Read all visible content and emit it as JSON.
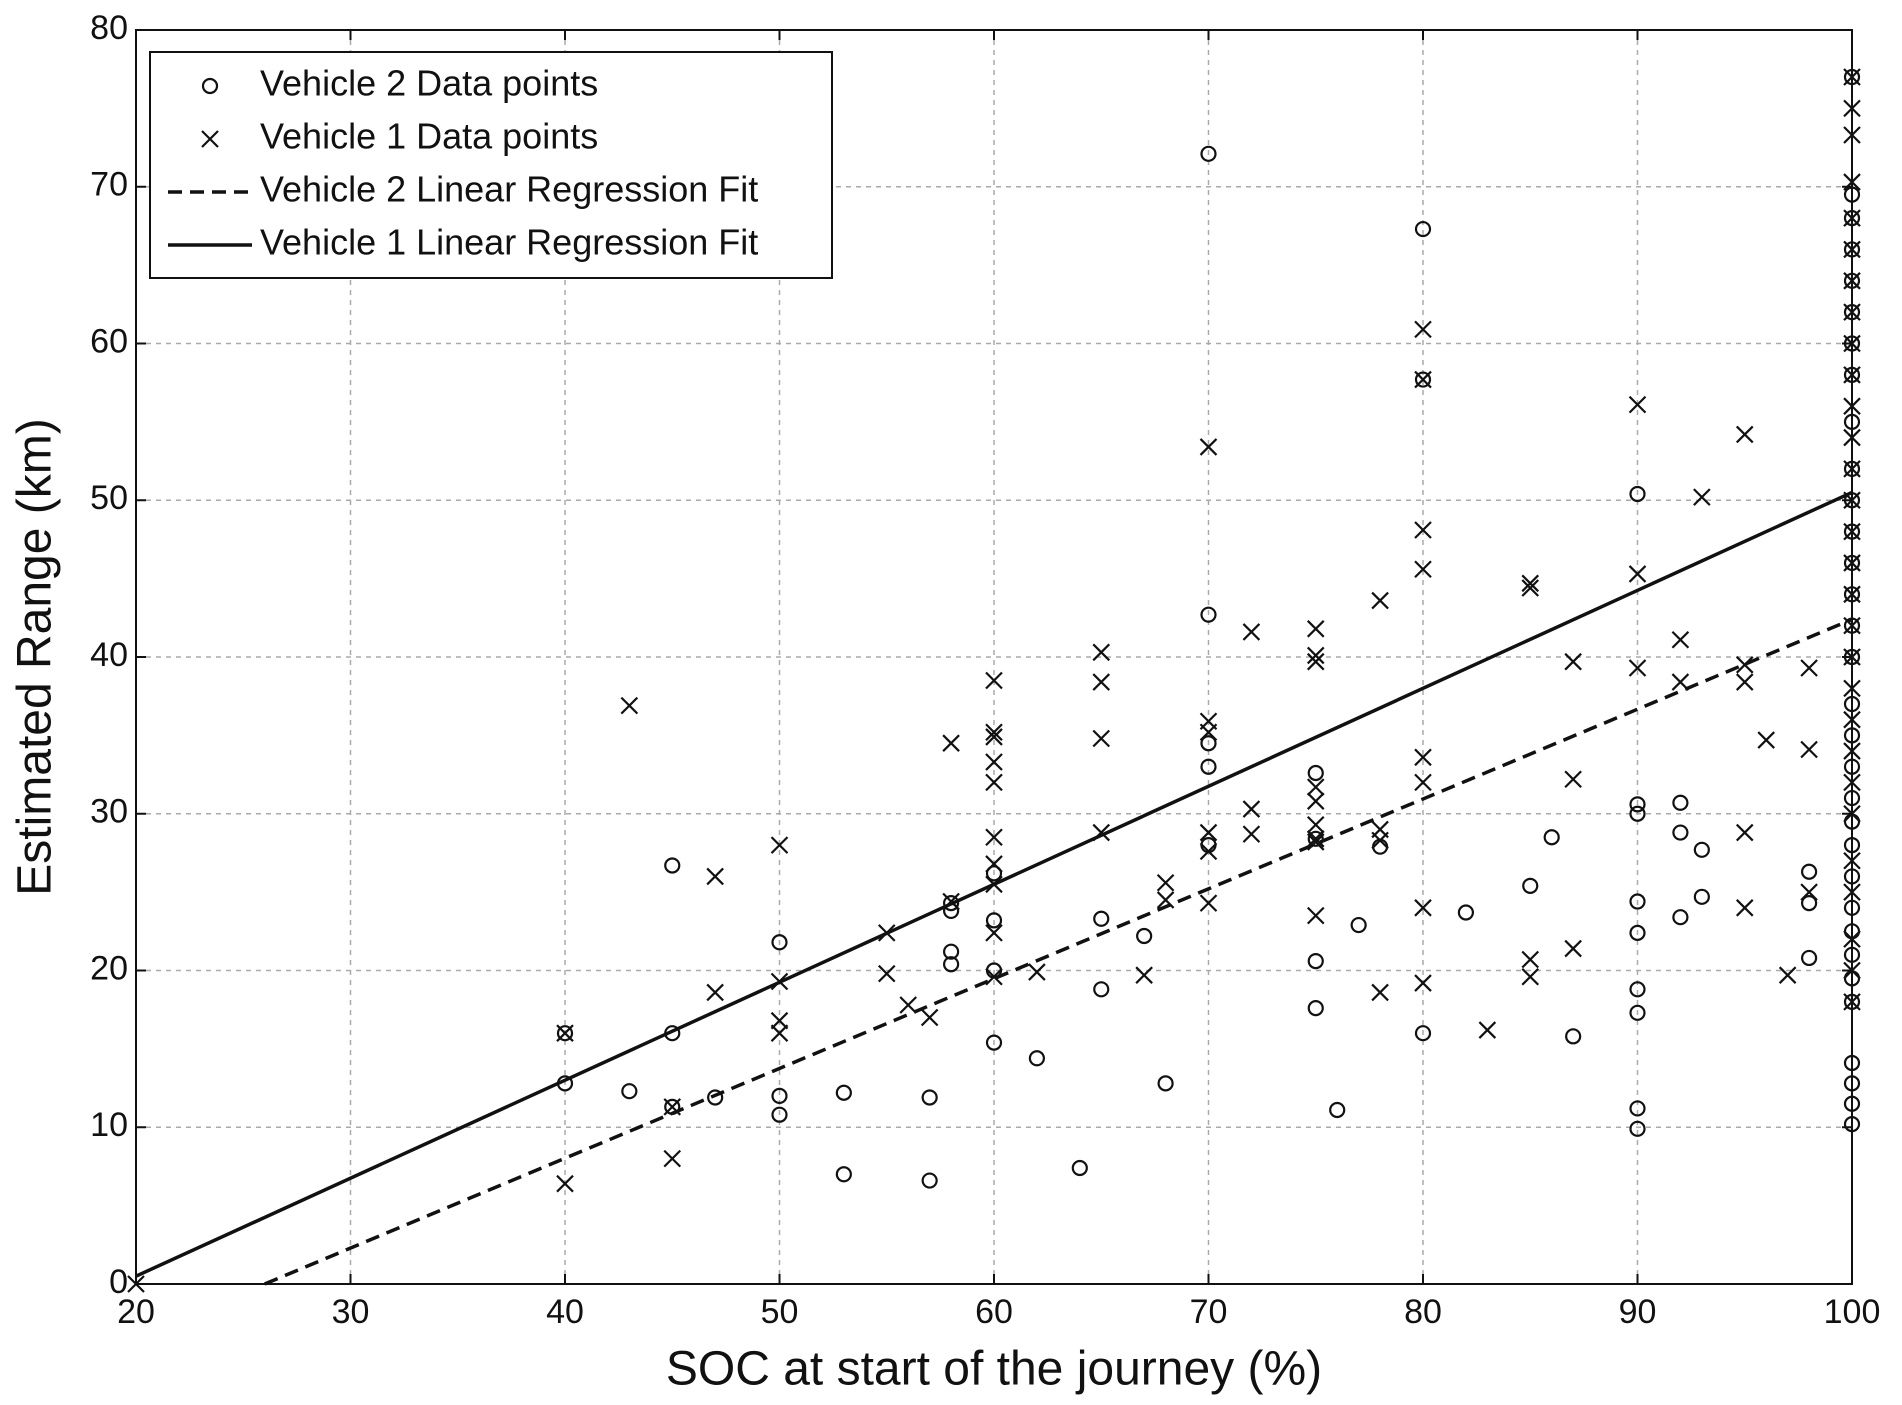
{
  "chart_data": {
    "type": "scatter",
    "xlabel": "SOC at start of the journey (%)",
    "ylabel": "Estimated Range (km)",
    "xlim": [
      20,
      100
    ],
    "ylim": [
      0,
      80
    ],
    "xticks": [
      20,
      30,
      40,
      50,
      60,
      70,
      80,
      90,
      100
    ],
    "yticks": [
      0,
      10,
      20,
      30,
      40,
      50,
      60,
      70,
      80
    ],
    "grid": true,
    "legend": "upper left",
    "series": [
      {
        "name": "Vehicle 2 Data points",
        "marker": "circle",
        "color": "#111111",
        "x": [
          40,
          40,
          43,
          45,
          45,
          45,
          47,
          50,
          50,
          50,
          53,
          53,
          57,
          57,
          58,
          58,
          58,
          58,
          60,
          60,
          60,
          60,
          62,
          64,
          65,
          65,
          67,
          68,
          70,
          70,
          70,
          70,
          70,
          75,
          75,
          75,
          75,
          76,
          77,
          78,
          80,
          80,
          80,
          82,
          85,
          86,
          87,
          90,
          90,
          90,
          90,
          90,
          90,
          90,
          90,
          90,
          92,
          92,
          92,
          93,
          93,
          98,
          98,
          98,
          100,
          100,
          100,
          100,
          100,
          100,
          100,
          100,
          100,
          100,
          100,
          100,
          100,
          100,
          100,
          100,
          100,
          100,
          100,
          100,
          100,
          100,
          100,
          100,
          100,
          100,
          100,
          100,
          100,
          100,
          100,
          100
        ],
        "values": [
          12.8,
          16,
          12.3,
          26.7,
          16,
          11.3,
          11.9,
          21.8,
          12,
          10.8,
          12.2,
          7,
          11.9,
          6.6,
          24.3,
          23.8,
          21.2,
          20.4,
          26.2,
          23.2,
          20,
          15.4,
          14.4,
          7.4,
          23.3,
          18.8,
          22.2,
          12.8,
          72.1,
          42.7,
          34.5,
          33,
          28,
          32.6,
          28.4,
          20.6,
          17.6,
          11.1,
          22.9,
          27.9,
          67.3,
          57.7,
          16,
          23.7,
          25.4,
          28.5,
          15.8,
          50.4,
          30.6,
          30,
          24.4,
          22.4,
          18.8,
          17.3,
          11.2,
          9.9,
          30.7,
          28.8,
          23.4,
          27.7,
          24.7,
          26.3,
          24.3,
          20.8,
          10.2,
          11.5,
          12.8,
          14.1,
          18,
          19.5,
          21,
          22.5,
          24,
          26,
          28,
          29.5,
          31,
          33,
          35,
          37,
          40,
          42,
          44,
          46,
          48,
          50,
          52,
          55,
          58,
          60,
          62,
          64,
          66,
          68,
          69.5,
          77
        ]
      },
      {
        "name": "Vehicle 1 Data points",
        "marker": "cross",
        "color": "#111111",
        "x": [
          20,
          40,
          40,
          43,
          45,
          45,
          47,
          47,
          50,
          50,
          50,
          50,
          55,
          55,
          56,
          57,
          58,
          58,
          60,
          60,
          60,
          60,
          60,
          60,
          60,
          60,
          60,
          60,
          62,
          65,
          65,
          65,
          65,
          67,
          68,
          68,
          70,
          70,
          70,
          70,
          70,
          70,
          72,
          72,
          72,
          75,
          75,
          75,
          75,
          75,
          75,
          75,
          75,
          75,
          78,
          78,
          78,
          78,
          80,
          80,
          80,
          80,
          80,
          80,
          80,
          80,
          83,
          85,
          85,
          85,
          85,
          87,
          87,
          87,
          90,
          90,
          90,
          92,
          92,
          93,
          95,
          95,
          95,
          95,
          95,
          96,
          97,
          98,
          98,
          98,
          100,
          100,
          100,
          100,
          100,
          100,
          100,
          100,
          100,
          100,
          100,
          100,
          100,
          100,
          100,
          100,
          100,
          100,
          100,
          100,
          100,
          100,
          100,
          100,
          100,
          100,
          100,
          100,
          100
        ],
        "values": [
          0,
          16,
          6.4,
          36.9,
          11.3,
          8,
          26,
          18.6,
          28,
          19.3,
          16.8,
          16,
          22.4,
          19.8,
          17.8,
          17,
          34.5,
          24.4,
          38.5,
          35.2,
          34.9,
          33.3,
          32,
          28.5,
          26.8,
          25.5,
          22.4,
          19.6,
          19.9,
          40.3,
          38.4,
          34.8,
          28.8,
          19.7,
          25.6,
          24.5,
          53.4,
          35.9,
          35.2,
          28.8,
          27.6,
          24.3,
          41.6,
          30.3,
          28.7,
          41.8,
          40.1,
          39.7,
          31.7,
          30.8,
          29.3,
          28.4,
          28.2,
          23.5,
          43.6,
          29,
          28.3,
          18.6,
          60.9,
          57.7,
          48.1,
          45.6,
          33.6,
          32,
          24,
          19.2,
          16.2,
          44.7,
          44.4,
          20.7,
          19.6,
          39.7,
          32.2,
          21.4,
          56.1,
          45.3,
          39.3,
          41.1,
          38.4,
          50.2,
          54.2,
          39.5,
          38.4,
          28.8,
          24,
          34.7,
          19.7,
          39.3,
          34.1,
          25,
          77,
          75,
          73.3,
          70.3,
          68,
          66,
          64,
          62,
          60,
          58,
          56,
          54,
          52,
          50,
          48,
          46,
          44,
          42,
          40,
          38,
          36,
          34,
          32,
          30,
          27,
          25,
          22,
          20,
          18
        ]
      },
      {
        "name": "Vehicle 2 Linear Regression Fit",
        "linestyle": "dashed",
        "color": "#111111",
        "x": [
          26,
          100
        ],
        "values": [
          0,
          42.4
        ]
      },
      {
        "name": "Vehicle 1 Linear Regression Fit",
        "linestyle": "solid",
        "color": "#111111",
        "x": [
          20,
          100
        ],
        "values": [
          0.5,
          50.5
        ]
      }
    ]
  }
}
